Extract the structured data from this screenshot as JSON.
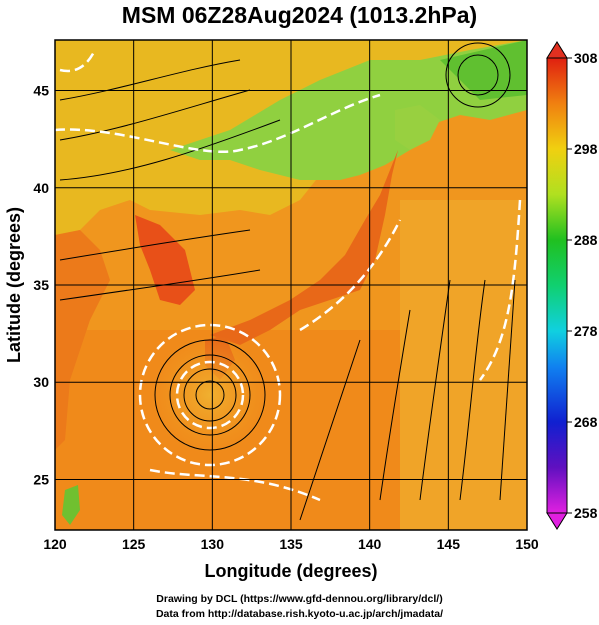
{
  "title": "MSM 06Z28Aug2024 (1013.2hPa)",
  "axes": {
    "xlabel": "Longitude (degrees)",
    "ylabel": "Latitude  (degrees)",
    "xticks": [
      "120",
      "125",
      "130",
      "135",
      "140",
      "145",
      "150"
    ],
    "yticks": [
      "25",
      "30",
      "35",
      "40",
      "45"
    ]
  },
  "colorbar": {
    "ticks": [
      "258",
      "268",
      "278",
      "288",
      "298",
      "308"
    ]
  },
  "footer": {
    "line1": "Drawing by DCL (https://www.gfd-dennou.org/library/dcl/)",
    "line2": "Data from http://database.rish.kyoto-u.ac.jp/arch/jmadata/"
  },
  "colors": {
    "land_warm": "#f07818",
    "sea_warm": "#f09a20",
    "cool_land": "#8fd040",
    "contour": "#ffffff",
    "streamline": "#000000"
  },
  "chart_data": {
    "type": "heatmap",
    "title": "MSM 06Z28Aug2024 (1013.2hPa)",
    "xlabel": "Longitude (degrees)",
    "ylabel": "Latitude  (degrees)",
    "xlim": [
      120,
      150
    ],
    "ylim": [
      22.4,
      47.6
    ],
    "colorbar_range": [
      258,
      308
    ],
    "colorbar_ticks": [
      258,
      268,
      278,
      288,
      298,
      308
    ],
    "grid": true
  }
}
